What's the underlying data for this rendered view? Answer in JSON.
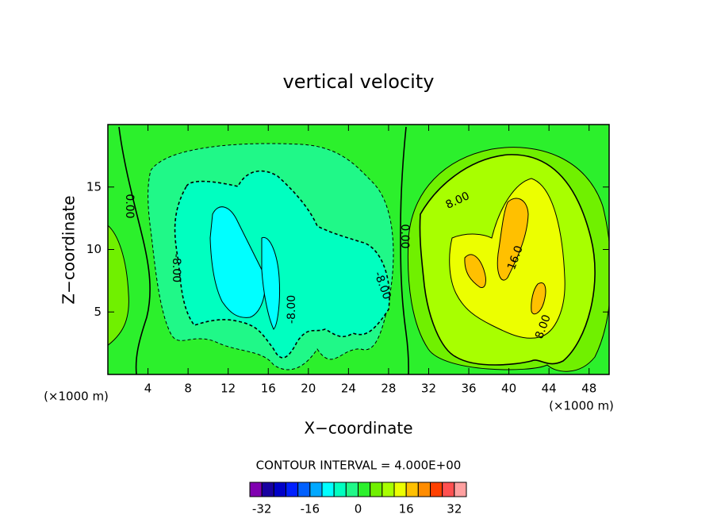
{
  "chart_data": {
    "type": "contour",
    "title": "vertical velocity",
    "x_label": "X−coordinate",
    "y_label": "Z−coordinate",
    "unit_label": "(×1000 m)",
    "xlim": [
      0,
      50
    ],
    "xticks": [
      4,
      8,
      12,
      16,
      20,
      24,
      28,
      32,
      36,
      40,
      44,
      48
    ],
    "ylim": [
      0,
      20
    ],
    "yticks": [
      5,
      10,
      15
    ],
    "contour_interval_label": "CONTOUR INTERVAL = 4.000E+00",
    "contour_labels": [
      "0.00",
      "8.00",
      "-8.00",
      "16.0"
    ],
    "colorbar": {
      "levels": [
        -36,
        -32,
        -28,
        -24,
        -20,
        -16,
        -12,
        -8,
        -4,
        0,
        4,
        8,
        12,
        16,
        20,
        24,
        28,
        32,
        36
      ],
      "colors": [
        "#8000b0",
        "#1800a0",
        "#0000c8",
        "#0020ff",
        "#0060ff",
        "#00a8ff",
        "#00ffff",
        "#00ffc0",
        "#20f888",
        "#2cf02c",
        "#70f000",
        "#a8ff00",
        "#ecff00",
        "#ffc000",
        "#ff8c00",
        "#ff4000",
        "#ff5050",
        "#ffa0a0"
      ],
      "ticks": [
        -32,
        -16,
        0,
        16,
        32
      ]
    }
  }
}
